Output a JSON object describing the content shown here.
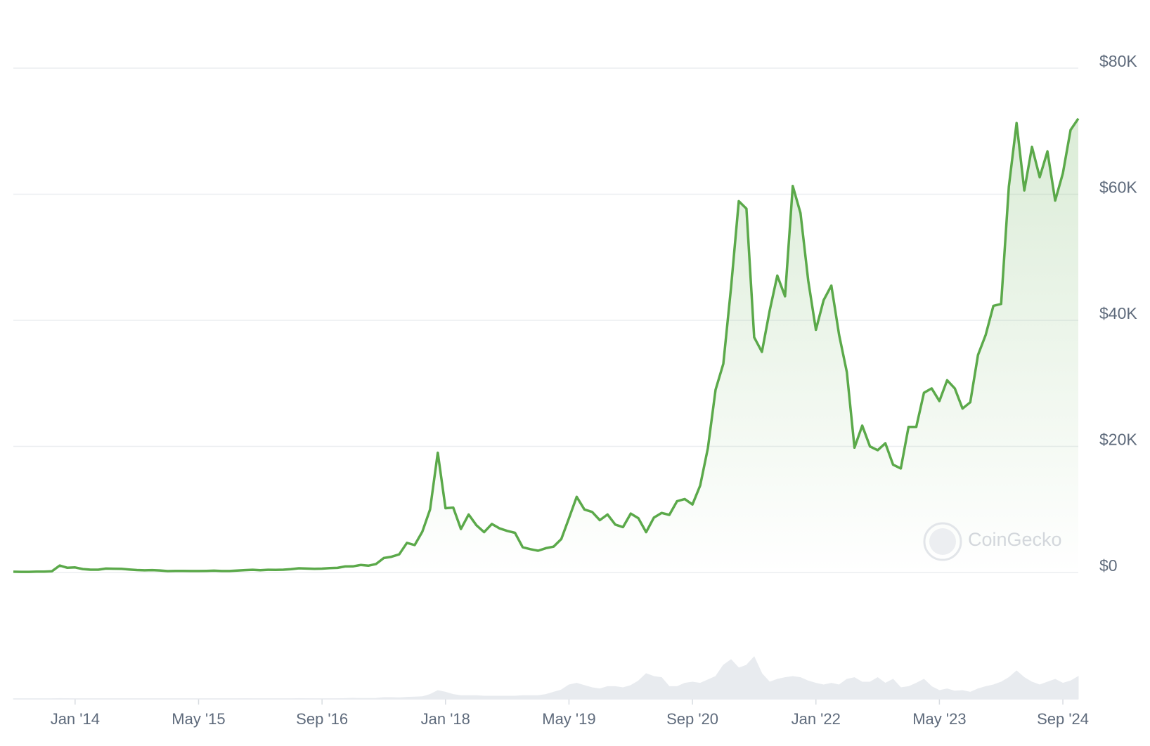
{
  "chart_data": {
    "type": "line",
    "watermark": "CoinGecko",
    "x": [
      "2013-05",
      "2013-06",
      "2013-07",
      "2013-08",
      "2013-09",
      "2013-10",
      "2013-11",
      "2013-12",
      "2014-01",
      "2014-02",
      "2014-03",
      "2014-04",
      "2014-05",
      "2014-06",
      "2014-07",
      "2014-08",
      "2014-09",
      "2014-10",
      "2014-11",
      "2014-12",
      "2015-01",
      "2015-02",
      "2015-03",
      "2015-04",
      "2015-05",
      "2015-06",
      "2015-07",
      "2015-08",
      "2015-09",
      "2015-10",
      "2015-11",
      "2015-12",
      "2016-01",
      "2016-02",
      "2016-03",
      "2016-04",
      "2016-05",
      "2016-06",
      "2016-07",
      "2016-08",
      "2016-09",
      "2016-10",
      "2016-11",
      "2016-12",
      "2017-01",
      "2017-02",
      "2017-03",
      "2017-04",
      "2017-05",
      "2017-06",
      "2017-07",
      "2017-08",
      "2017-09",
      "2017-10",
      "2017-11",
      "2017-12",
      "2018-01",
      "2018-02",
      "2018-03",
      "2018-04",
      "2018-05",
      "2018-06",
      "2018-07",
      "2018-08",
      "2018-09",
      "2018-10",
      "2018-11",
      "2018-12",
      "2019-01",
      "2019-02",
      "2019-03",
      "2019-04",
      "2019-05",
      "2019-06",
      "2019-07",
      "2019-08",
      "2019-09",
      "2019-10",
      "2019-11",
      "2019-12",
      "2020-01",
      "2020-02",
      "2020-03",
      "2020-04",
      "2020-05",
      "2020-06",
      "2020-07",
      "2020-08",
      "2020-09",
      "2020-10",
      "2020-11",
      "2020-12",
      "2021-01",
      "2021-02",
      "2021-03",
      "2021-04",
      "2021-05",
      "2021-06",
      "2021-07",
      "2021-08",
      "2021-09",
      "2021-10",
      "2021-11",
      "2021-12",
      "2022-01",
      "2022-02",
      "2022-03",
      "2022-04",
      "2022-05",
      "2022-06",
      "2022-07",
      "2022-08",
      "2022-09",
      "2022-10",
      "2022-11",
      "2022-12",
      "2023-01",
      "2023-02",
      "2023-03",
      "2023-04",
      "2023-05",
      "2023-06",
      "2023-07",
      "2023-08",
      "2023-09",
      "2023-10",
      "2023-11",
      "2023-12",
      "2024-01",
      "2024-02",
      "2024-03",
      "2024-04",
      "2024-05",
      "2024-06",
      "2024-07",
      "2024-08",
      "2024-09",
      "2024-10",
      "2024-11"
    ],
    "series": [
      {
        "color": "#5ba94a",
        "values": [
          120,
          100,
          100,
          130,
          135,
          200,
          1100,
          750,
          800,
          550,
          450,
          450,
          620,
          600,
          580,
          480,
          390,
          340,
          380,
          320,
          220,
          255,
          245,
          235,
          230,
          260,
          285,
          230,
          235,
          315,
          375,
          430,
          370,
          435,
          415,
          450,
          530,
          670,
          625,
          575,
          610,
          700,
          740,
          960,
          970,
          1190,
          1080,
          1350,
          2300,
          2500,
          2870,
          4700,
          4340,
          6470,
          10000,
          19000,
          10200,
          10300,
          6900,
          9200,
          7500,
          6400,
          7700,
          7000,
          6600,
          6300,
          4000,
          3700,
          3450,
          3850,
          4100,
          5300,
          8600,
          12000,
          10000,
          9600,
          8300,
          9200,
          7600,
          7200,
          9350,
          8600,
          6400,
          8700,
          9450,
          9140,
          11300,
          11650,
          10780,
          13800,
          19700,
          29000,
          33100,
          45200,
          58900,
          57700,
          37300,
          35000,
          41500,
          47100,
          43800,
          61300,
          57000,
          46300,
          38500,
          43200,
          45500,
          37700,
          31800,
          19800,
          23300,
          20000,
          19400,
          20500,
          17100,
          16500,
          23100,
          23100,
          28500,
          29200,
          27200,
          30500,
          29200,
          26000,
          27000,
          34500,
          37700,
          42300,
          42600,
          61200,
          71300,
          60600,
          67500,
          62700,
          66800,
          59000,
          63300,
          70200,
          72000
        ]
      },
      {
        "color": "#e8ebef",
        "axis": "y2",
        "values": [
          0.1,
          0.1,
          0.1,
          0.1,
          0.1,
          0.2,
          0.8,
          0.6,
          0.4,
          0.4,
          0.3,
          0.3,
          0.3,
          0.2,
          0.2,
          0.2,
          0.2,
          0.2,
          0.2,
          0.2,
          0.3,
          0.3,
          0.3,
          0.2,
          0.2,
          0.2,
          0.3,
          0.3,
          0.2,
          0.3,
          0.5,
          0.4,
          0.3,
          0.3,
          0.3,
          0.3,
          0.4,
          0.8,
          0.5,
          0.4,
          0.3,
          0.4,
          0.5,
          0.8,
          1.2,
          0.9,
          1.0,
          1.1,
          2.5,
          2.5,
          2.0,
          3.0,
          3.5,
          4.0,
          8.0,
          15.0,
          12.0,
          8.0,
          6.0,
          6.0,
          6.0,
          5.0,
          5.0,
          5.0,
          5.0,
          5.0,
          6.0,
          6.0,
          6.0,
          8.0,
          12.0,
          16.0,
          25.0,
          28.0,
          24.0,
          20.0,
          18.0,
          22.0,
          22.0,
          20.0,
          24.0,
          32.0,
          45.0,
          40.0,
          38.0,
          22.0,
          22.0,
          28.0,
          30.0,
          28.0,
          34.0,
          40.0,
          60.0,
          70.0,
          55.0,
          60.0,
          75.0,
          45.0,
          30.0,
          35.0,
          38.0,
          40.0,
          38.0,
          32.0,
          28.0,
          25.0,
          28.0,
          25.0,
          35.0,
          38.0,
          30.0,
          30.0,
          38.0,
          28.0,
          35.0,
          20.0,
          22.0,
          28.0,
          35.0,
          22.0,
          15.0,
          18.0,
          14.0,
          15.0,
          12.0,
          18.0,
          22.0,
          25.0,
          30.0,
          38.0,
          50.0,
          38.0,
          30.0,
          25.0,
          30.0,
          35.0,
          28.0,
          32.0,
          40.0
        ]
      }
    ],
    "xlim": [
      "2013-05",
      "2024-11"
    ],
    "xticks": [
      {
        "value": "2014-01",
        "label": "Jan '14"
      },
      {
        "value": "2015-05",
        "label": "May '15"
      },
      {
        "value": "2016-09",
        "label": "Sep '16"
      },
      {
        "value": "2018-01",
        "label": "Jan '18"
      },
      {
        "value": "2019-05",
        "label": "May '19"
      },
      {
        "value": "2020-09",
        "label": "Sep '20"
      },
      {
        "value": "2022-01",
        "label": "Jan '22"
      },
      {
        "value": "2023-05",
        "label": "May '23"
      },
      {
        "value": "2024-09",
        "label": "Sep '24"
      }
    ],
    "ylim": [
      0,
      80000
    ],
    "yticks": [
      {
        "value": 0,
        "label": "$0"
      },
      {
        "value": 20000,
        "label": "$20K"
      },
      {
        "value": 40000,
        "label": "$40K"
      },
      {
        "value": 60000,
        "label": "$60K"
      },
      {
        "value": 80000,
        "label": "$80K"
      }
    ],
    "y2lim": [
      0,
      200
    ],
    "grid": true
  }
}
